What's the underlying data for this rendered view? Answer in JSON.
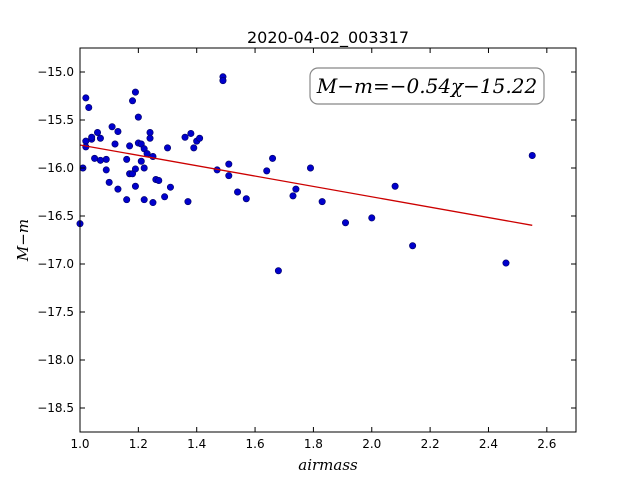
{
  "chart_data": {
    "type": "scatter",
    "title": "2020-04-02_003317",
    "xlabel": "airmass",
    "ylabel": "M−m",
    "xlim": [
      1.0,
      2.7
    ],
    "ylim": [
      -18.75,
      -14.75
    ],
    "y_inverted": false,
    "grid": false,
    "x_ticks": [
      1.0,
      1.2,
      1.4,
      1.6,
      1.8,
      2.0,
      2.2,
      2.4,
      2.6
    ],
    "x_tick_labels": [
      "1.0",
      "1.2",
      "1.4",
      "1.6",
      "1.8",
      "2.0",
      "2.2",
      "2.4",
      "2.6"
    ],
    "y_ticks": [
      -15.0,
      -15.5,
      -16.0,
      -16.5,
      -17.0,
      -17.5,
      -18.0,
      -18.5
    ],
    "y_tick_labels": [
      "−15.0",
      "−15.5",
      "−16.0",
      "−16.5",
      "−17.0",
      "−17.5",
      "−18.0",
      "−18.5"
    ],
    "annotation": "M−m=−0.54χ−15.22",
    "point_color": "#0000cc",
    "fit_color": "#cc0000",
    "fit_line": {
      "slope": -0.54,
      "intercept": -15.22,
      "x_start": 1.0,
      "x_end": 2.55
    },
    "points": [
      [
        1.0,
        -16.58
      ],
      [
        1.01,
        -16.0
      ],
      [
        1.02,
        -15.72
      ],
      [
        1.02,
        -15.78
      ],
      [
        1.02,
        -15.27
      ],
      [
        1.03,
        -15.37
      ],
      [
        1.04,
        -15.7
      ],
      [
        1.04,
        -15.68
      ],
      [
        1.05,
        -15.9
      ],
      [
        1.06,
        -15.63
      ],
      [
        1.07,
        -15.92
      ],
      [
        1.07,
        -15.69
      ],
      [
        1.09,
        -15.91
      ],
      [
        1.09,
        -16.02
      ],
      [
        1.1,
        -16.15
      ],
      [
        1.11,
        -15.57
      ],
      [
        1.12,
        -15.75
      ],
      [
        1.13,
        -16.22
      ],
      [
        1.13,
        -15.62
      ],
      [
        1.16,
        -16.33
      ],
      [
        1.16,
        -15.91
      ],
      [
        1.17,
        -15.77
      ],
      [
        1.17,
        -16.06
      ],
      [
        1.18,
        -15.3
      ],
      [
        1.18,
        -16.06
      ],
      [
        1.19,
        -16.19
      ],
      [
        1.19,
        -15.21
      ],
      [
        1.19,
        -16.01
      ],
      [
        1.2,
        -15.47
      ],
      [
        1.2,
        -15.74
      ],
      [
        1.21,
        -15.75
      ],
      [
        1.21,
        -15.93
      ],
      [
        1.22,
        -16.33
      ],
      [
        1.22,
        -15.8
      ],
      [
        1.22,
        -16.0
      ],
      [
        1.23,
        -15.85
      ],
      [
        1.24,
        -15.63
      ],
      [
        1.24,
        -15.69
      ],
      [
        1.25,
        -15.88
      ],
      [
        1.25,
        -16.36
      ],
      [
        1.26,
        -16.12
      ],
      [
        1.27,
        -16.13
      ],
      [
        1.29,
        -16.3
      ],
      [
        1.3,
        -15.79
      ],
      [
        1.31,
        -16.2
      ],
      [
        1.36,
        -15.68
      ],
      [
        1.37,
        -16.35
      ],
      [
        1.38,
        -15.64
      ],
      [
        1.39,
        -15.79
      ],
      [
        1.4,
        -15.72
      ],
      [
        1.41,
        -15.69
      ],
      [
        1.47,
        -16.02
      ],
      [
        1.49,
        -15.05
      ],
      [
        1.49,
        -15.09
      ],
      [
        1.51,
        -15.96
      ],
      [
        1.51,
        -16.08
      ],
      [
        1.54,
        -16.25
      ],
      [
        1.57,
        -16.32
      ],
      [
        1.64,
        -16.03
      ],
      [
        1.66,
        -15.9
      ],
      [
        1.68,
        -17.07
      ],
      [
        1.73,
        -16.29
      ],
      [
        1.74,
        -16.22
      ],
      [
        1.79,
        -16.0
      ],
      [
        1.83,
        -16.35
      ],
      [
        1.91,
        -16.57
      ],
      [
        2.0,
        -16.52
      ],
      [
        2.08,
        -16.19
      ],
      [
        2.14,
        -16.81
      ],
      [
        2.46,
        -16.99
      ],
      [
        2.55,
        -15.87
      ]
    ]
  }
}
